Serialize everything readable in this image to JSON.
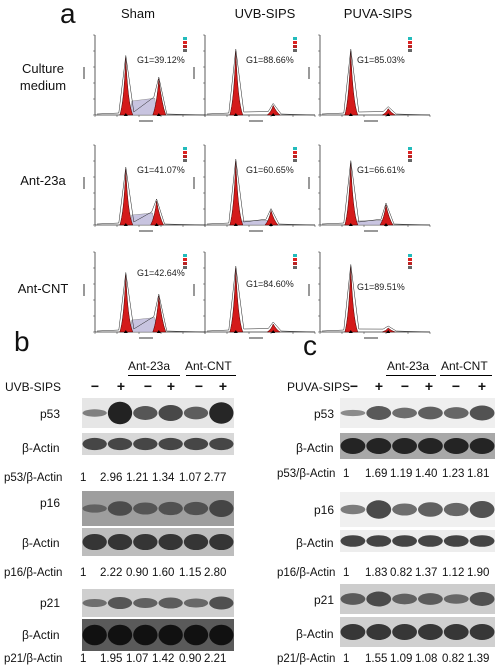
{
  "panel_a": {
    "letter": "a",
    "columns": [
      "Sham",
      "UVB-SIPS",
      "PUVA-SIPS"
    ],
    "rows": [
      {
        "label": "Culture\nmedium",
        "g1": [
          "G1=39.12%",
          "G1=88.66%",
          "G1=85.03%"
        ]
      },
      {
        "label": "Ant-23a",
        "g1": [
          "G1=41.07%",
          "G1=60.65%",
          "G1=66.61%"
        ]
      },
      {
        "label": "Ant-CNT",
        "g1": [
          "G1=42.64%",
          "G1=84.60%",
          "G1=89.51%"
        ]
      }
    ]
  },
  "panel_b": {
    "letter": "b",
    "treatment": "UVB-SIPS",
    "group1": "Ant-23a",
    "group2": "Ant-CNT",
    "signs": [
      "−",
      "+",
      "−",
      "+",
      "−",
      "+"
    ],
    "blots": [
      {
        "protein": "p53",
        "ratio_label": "p53/β-Actin",
        "ratios": [
          "1",
          "2.96",
          "1.21",
          "1.34",
          "1.07",
          "2.77"
        ]
      },
      {
        "protein": "p16",
        "ratio_label": "p16/β-Actin",
        "ratios": [
          "1",
          "2.22",
          "0.90",
          "1.60",
          "1.15",
          "2.80"
        ]
      },
      {
        "protein": "p21",
        "ratio_label": "p21/β-Actin",
        "ratios": [
          "1",
          "1.95",
          "1.07",
          "1.42",
          "0.90",
          "2.21"
        ]
      }
    ],
    "loading": "β-Actin"
  },
  "panel_c": {
    "letter": "c",
    "treatment": "PUVA-SIPS",
    "group1": "Ant-23a",
    "group2": "Ant-CNT",
    "signs": [
      "−",
      "+",
      "−",
      "+",
      "−",
      "+"
    ],
    "blots": [
      {
        "protein": "p53",
        "ratio_label": "p53/β-Actin",
        "ratios": [
          "1",
          "1.69",
          "1.19",
          "1.40",
          "1.23",
          "1.81"
        ]
      },
      {
        "protein": "p16",
        "ratio_label": "p16/β-Actin",
        "ratios": [
          "1",
          "1.83",
          "0.82",
          "1.37",
          "1.12",
          "1.90"
        ]
      },
      {
        "protein": "p21",
        "ratio_label": "p21/β-Actin",
        "ratios": [
          "1",
          "1.55",
          "1.09",
          "1.08",
          "0.82",
          "1.39"
        ]
      }
    ],
    "loading": "β-Actin"
  }
}
